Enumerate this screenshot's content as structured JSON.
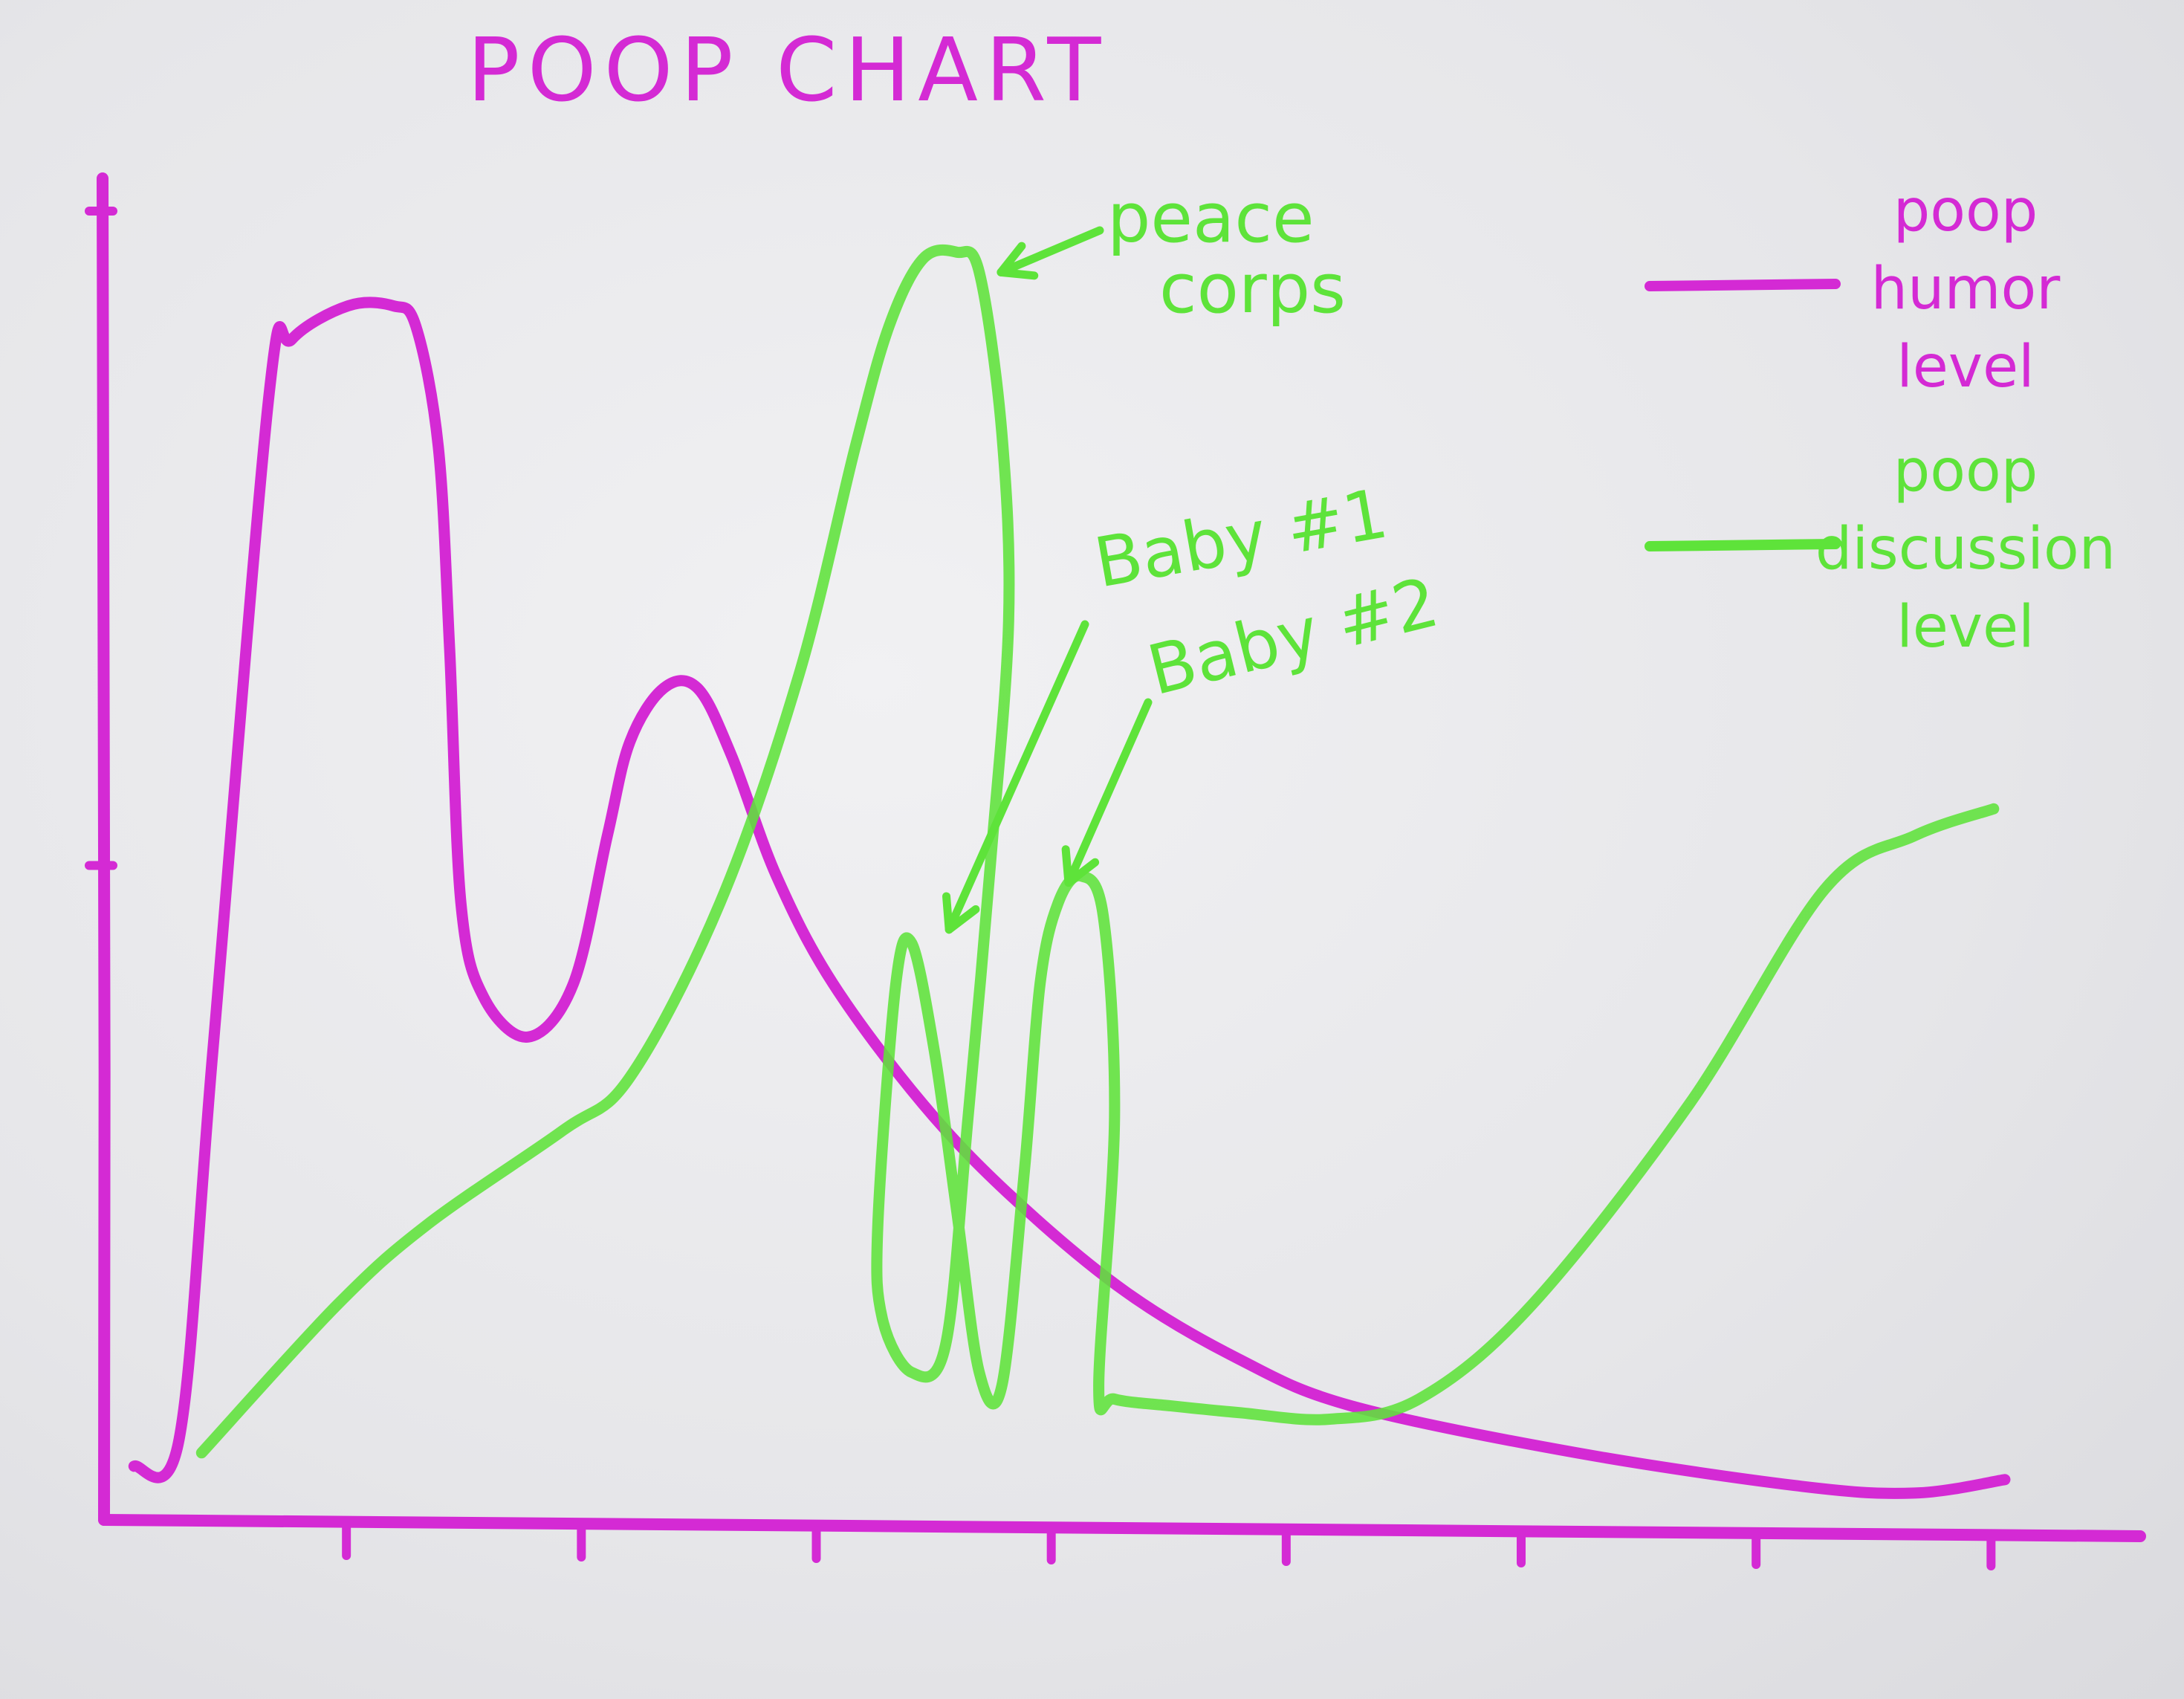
{
  "chart_data": {
    "type": "line",
    "title": "POOP CHART",
    "xlabel": "",
    "ylabel": "",
    "grid": false,
    "legend_position": "top-right",
    "xlim": [
      0,
      9
    ],
    "ylim": [
      0,
      10
    ],
    "x_tick_count": 8,
    "y_tick_count": 2,
    "colors": {
      "magenta": "#d42ad4",
      "green": "#5ee33a",
      "paper": "#ececef"
    },
    "series": [
      {
        "name": "poop humor level",
        "color": "#d42ad4",
        "legend_lines": [
          "poop",
          "humor",
          "level"
        ],
        "points": [
          [
            0.1,
            0.4
          ],
          [
            0.3,
            0.6
          ],
          [
            0.45,
            3.5
          ],
          [
            0.7,
            8.4
          ],
          [
            0.8,
            8.8
          ],
          [
            1.05,
            9.05
          ],
          [
            1.25,
            9.05
          ],
          [
            1.35,
            8.9
          ],
          [
            1.45,
            8.0
          ],
          [
            1.5,
            6.5
          ],
          [
            1.55,
            4.6
          ],
          [
            1.65,
            3.9
          ],
          [
            1.85,
            3.6
          ],
          [
            2.05,
            4.0
          ],
          [
            2.2,
            5.1
          ],
          [
            2.3,
            5.8
          ],
          [
            2.45,
            6.2
          ],
          [
            2.6,
            6.2
          ],
          [
            2.75,
            5.7
          ],
          [
            2.95,
            4.8
          ],
          [
            3.2,
            4.0
          ],
          [
            3.6,
            3.1
          ],
          [
            4.0,
            2.4
          ],
          [
            4.5,
            1.7
          ],
          [
            5.0,
            1.2
          ],
          [
            5.5,
            0.85
          ],
          [
            6.5,
            0.5
          ],
          [
            7.5,
            0.25
          ],
          [
            8.0,
            0.2
          ],
          [
            8.4,
            0.3
          ]
        ]
      },
      {
        "name": "poop discussion level",
        "color": "#5ee33a",
        "legend_lines": [
          "poop",
          "discussion",
          "level"
        ],
        "points": [
          [
            0.4,
            0.5
          ],
          [
            1.0,
            1.6
          ],
          [
            1.4,
            2.2
          ],
          [
            2.0,
            2.9
          ],
          [
            2.3,
            3.3
          ],
          [
            2.7,
            4.6
          ],
          [
            3.05,
            6.3
          ],
          [
            3.3,
            8.0
          ],
          [
            3.45,
            8.9
          ],
          [
            3.6,
            9.4
          ],
          [
            3.75,
            9.45
          ],
          [
            3.85,
            9.3
          ],
          [
            3.95,
            8.1
          ],
          [
            3.98,
            6.7
          ],
          [
            3.9,
            4.9
          ],
          [
            3.8,
            3.0
          ],
          [
            3.7,
            1.3
          ],
          [
            3.55,
            1.1
          ],
          [
            3.42,
            1.5
          ],
          [
            3.4,
            2.2
          ],
          [
            3.48,
            4.0
          ],
          [
            3.55,
            4.3
          ],
          [
            3.65,
            3.5
          ],
          [
            3.75,
            2.3
          ],
          [
            3.85,
            1.1
          ],
          [
            3.95,
            1.0
          ],
          [
            4.05,
            2.6
          ],
          [
            4.12,
            4.0
          ],
          [
            4.2,
            4.6
          ],
          [
            4.3,
            4.8
          ],
          [
            4.4,
            4.5
          ],
          [
            4.45,
            3.0
          ],
          [
            4.38,
            1.0
          ],
          [
            4.45,
            0.9
          ],
          [
            4.7,
            0.85
          ],
          [
            5.0,
            0.8
          ],
          [
            5.4,
            0.75
          ],
          [
            5.8,
            0.9
          ],
          [
            6.3,
            1.6
          ],
          [
            7.0,
            3.1
          ],
          [
            7.6,
            4.7
          ],
          [
            8.0,
            5.1
          ],
          [
            8.35,
            5.3
          ]
        ]
      }
    ],
    "annotations": [
      {
        "text_lines": [
          "peace",
          "corps"
        ],
        "color": "#5ee33a",
        "target": [
          3.88,
          9.3
        ]
      },
      {
        "text_lines": [
          "Baby #1"
        ],
        "color": "#5ee33a",
        "target": [
          3.65,
          4.4
        ]
      },
      {
        "text_lines": [
          "Baby #2"
        ],
        "color": "#5ee33a",
        "target": [
          4.18,
          4.75
        ]
      }
    ]
  }
}
